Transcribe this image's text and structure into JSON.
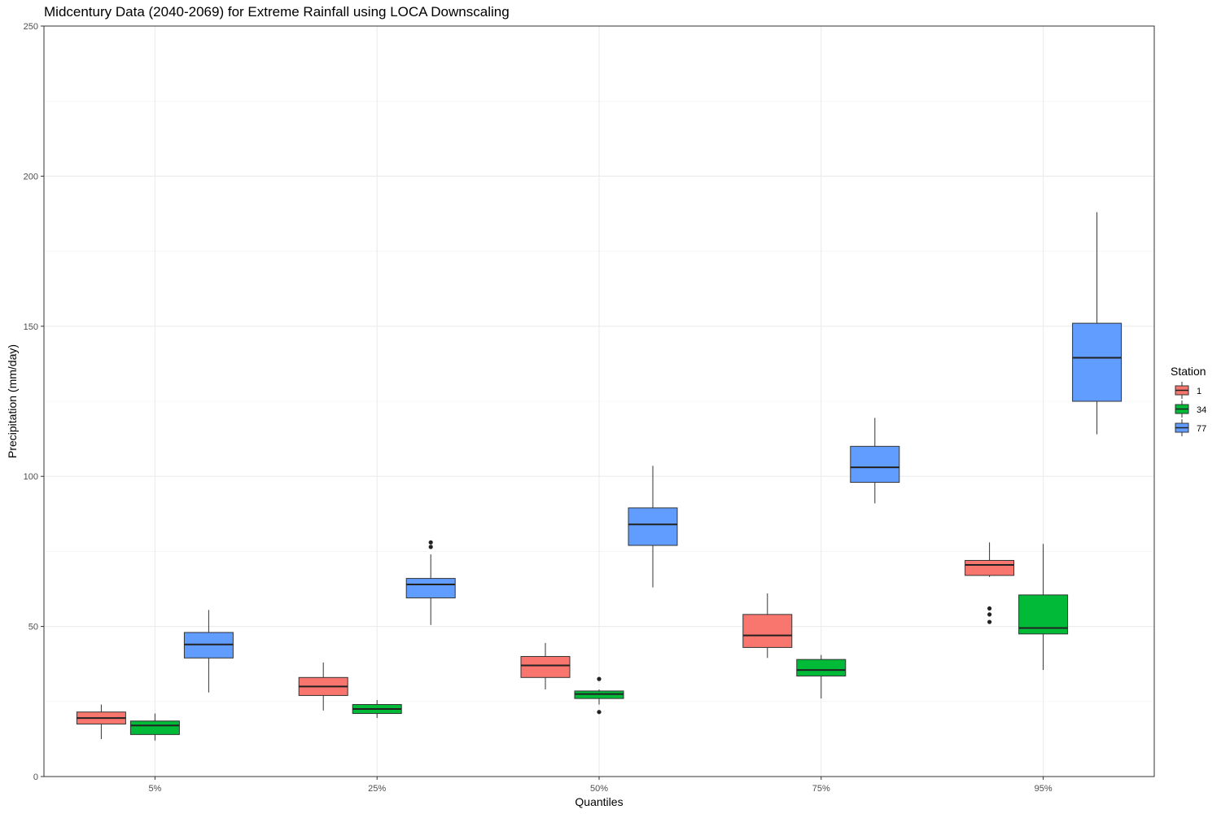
{
  "chart_data": {
    "type": "boxplot",
    "title": "Midcentury Data (2040-2069) for Extreme Rainfall using LOCA Downscaling",
    "xlabel": "Quantiles",
    "ylabel": "Precipitation (mm/day)",
    "categories": [
      "5%",
      "25%",
      "50%",
      "75%",
      "95%"
    ],
    "ylim": [
      0,
      250
    ],
    "yticks": [
      0,
      50,
      100,
      150,
      200,
      250
    ],
    "grid": true,
    "legend": {
      "title": "Station",
      "position": "right"
    },
    "series": [
      {
        "name": "1",
        "color": "#F8766D",
        "boxes": [
          {
            "whisker_low": 12.5,
            "q1": 17.5,
            "median": 19.5,
            "q3": 21.5,
            "whisker_high": 24,
            "outliers": []
          },
          {
            "whisker_low": 22,
            "q1": 27,
            "median": 30,
            "q3": 33,
            "whisker_high": 38,
            "outliers": []
          },
          {
            "whisker_low": 29,
            "q1": 33,
            "median": 37,
            "q3": 40,
            "whisker_high": 44.5,
            "outliers": []
          },
          {
            "whisker_low": 39.5,
            "q1": 43,
            "median": 47,
            "q3": 54,
            "whisker_high": 61,
            "outliers": []
          },
          {
            "whisker_low": 66.5,
            "q1": 67,
            "median": 70.5,
            "q3": 72,
            "whisker_high": 78,
            "outliers": [
              51.5,
              54,
              56
            ]
          }
        ]
      },
      {
        "name": "34",
        "color": "#00BA38",
        "boxes": [
          {
            "whisker_low": 12,
            "q1": 14,
            "median": 17,
            "q3": 18.5,
            "whisker_high": 21,
            "outliers": []
          },
          {
            "whisker_low": 19.5,
            "q1": 21,
            "median": 22.5,
            "q3": 24,
            "whisker_high": 25.5,
            "outliers": []
          },
          {
            "whisker_low": 24,
            "q1": 26,
            "median": 27.5,
            "q3": 28.5,
            "whisker_high": 29,
            "outliers": [
              21.5,
              32.5
            ]
          },
          {
            "whisker_low": 26,
            "q1": 33.5,
            "median": 35.5,
            "q3": 39,
            "whisker_high": 40.5,
            "outliers": []
          },
          {
            "whisker_low": 35.5,
            "q1": 47.5,
            "median": 49.5,
            "q3": 60.5,
            "whisker_high": 77.5,
            "outliers": []
          }
        ]
      },
      {
        "name": "77",
        "color": "#619CFF",
        "boxes": [
          {
            "whisker_low": 28,
            "q1": 39.5,
            "median": 44,
            "q3": 48,
            "whisker_high": 55.5,
            "outliers": []
          },
          {
            "whisker_low": 50.5,
            "q1": 59.5,
            "median": 64,
            "q3": 66,
            "whisker_high": 74,
            "outliers": [
              76.5,
              78
            ]
          },
          {
            "whisker_low": 63,
            "q1": 77,
            "median": 84,
            "q3": 89.5,
            "whisker_high": 103.5,
            "outliers": []
          },
          {
            "whisker_low": 91,
            "q1": 98,
            "median": 103,
            "q3": 110,
            "whisker_high": 119.5,
            "outliers": []
          },
          {
            "whisker_low": 114,
            "q1": 125,
            "median": 139.5,
            "q3": 151,
            "whisker_high": 188,
            "outliers": []
          }
        ]
      }
    ]
  }
}
